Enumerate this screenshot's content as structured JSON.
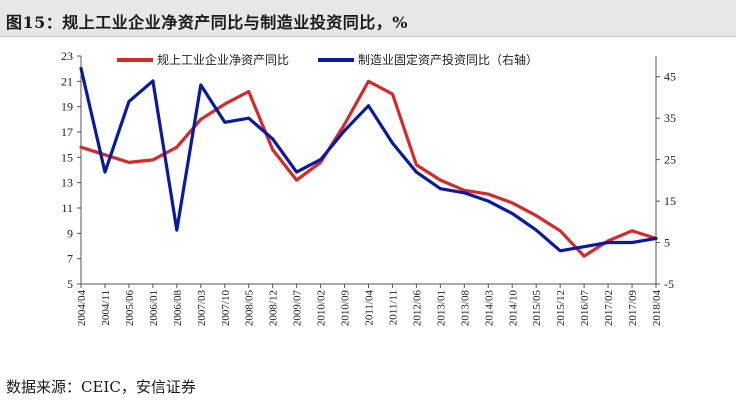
{
  "header": {
    "title": "图15：规上工业企业净资产同比与制造业投资同比，%"
  },
  "footer": {
    "source": "数据来源：CEIC，安信证券"
  },
  "colors": {
    "series_left": "#d42a2a",
    "series_right": "#0a1a9e",
    "axis": "#555555",
    "title_band": "#e7e7e7"
  },
  "chart_data": {
    "type": "line",
    "grid": false,
    "legend_position": "top",
    "y_left": {
      "min": 5,
      "max": 23,
      "ticks": [
        5,
        7,
        9,
        11,
        13,
        15,
        17,
        19,
        21,
        23
      ]
    },
    "y_right": {
      "min": -5,
      "max": 50,
      "ticks": [
        -5,
        5,
        15,
        25,
        35,
        45
      ]
    },
    "x_tick_labels": [
      "2004/04",
      "2004/11",
      "2005/06",
      "2006/01",
      "2006/08",
      "2007/03",
      "2007/10",
      "2008/05",
      "2008/12",
      "2009/07",
      "2010/02",
      "2010/09",
      "2011/04",
      "2011/11",
      "2012/06",
      "2013/01",
      "2013/08",
      "2014/03",
      "2014/10",
      "2015/05",
      "2015/12",
      "2016/07",
      "2017/02",
      "2017/09",
      "2018/04"
    ],
    "series": [
      {
        "name": "规上工业企业净资产同比",
        "axis": "left",
        "x": [
          "2004/04",
          "2004/11",
          "2005/06",
          "2006/01",
          "2006/08",
          "2007/03",
          "2007/10",
          "2008/05",
          "2008/12",
          "2009/07",
          "2010/02",
          "2010/09",
          "2011/04",
          "2011/11",
          "2012/06",
          "2013/01",
          "2013/08",
          "2014/03",
          "2014/10",
          "2015/05",
          "2015/12",
          "2016/07",
          "2017/02",
          "2017/09",
          "2018/04"
        ],
        "values": [
          15.8,
          15.2,
          14.6,
          14.8,
          15.8,
          18.0,
          19.2,
          20.2,
          15.6,
          13.2,
          14.6,
          17.6,
          21.0,
          20.0,
          14.4,
          13.2,
          12.4,
          12.1,
          11.4,
          10.4,
          9.2,
          7.2,
          8.4,
          9.2,
          8.6
        ]
      },
      {
        "name": "制造业固定资产投资同比（右轴）",
        "axis": "right",
        "x": [
          "2004/04",
          "2004/11",
          "2005/06",
          "2006/01",
          "2006/08",
          "2007/03",
          "2007/10",
          "2008/05",
          "2008/12",
          "2009/07",
          "2010/02",
          "2010/09",
          "2011/04",
          "2011/11",
          "2012/06",
          "2013/01",
          "2013/08",
          "2014/03",
          "2014/10",
          "2015/05",
          "2015/12",
          "2016/07",
          "2017/02",
          "2017/09",
          "2018/04"
        ],
        "values": [
          47,
          22,
          39,
          44,
          8,
          43,
          34,
          35,
          30,
          22,
          25,
          32,
          38,
          29,
          22,
          18,
          17,
          15,
          12,
          8,
          3,
          4,
          5,
          5,
          6
        ]
      }
    ]
  }
}
